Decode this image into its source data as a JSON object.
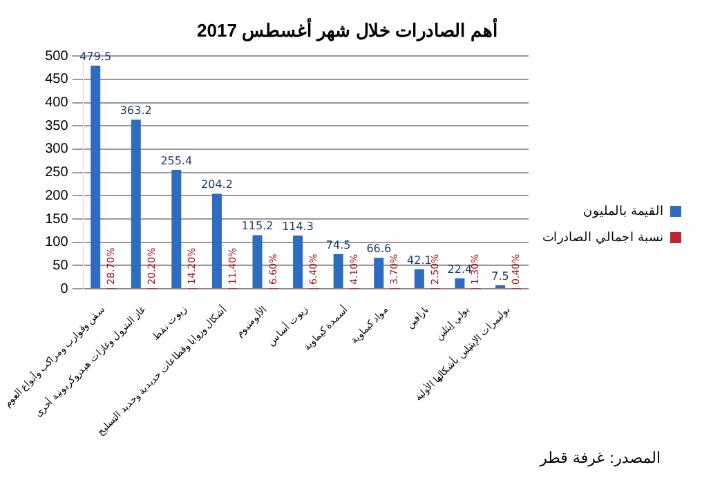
{
  "chart_data": {
    "type": "bar",
    "title": "أهم الصادرات خلال شهر أغسطس 2017",
    "categories": [
      "سفن وقوارب ومراكب وأنواع العوم",
      "غاز البترول وغازات هيدروكربونية أخرى",
      "زيوت نفط",
      "أشكال وزوايا وقطاعات حديدية وحديد التسليح",
      "الألومنيوم",
      "زيوت أساس",
      "أسمدة كيماوية",
      "مواد كيماوية",
      "بارافين",
      "بولي إيثلين",
      "بوليمرات الإيثيلين بأشكالها الأولية"
    ],
    "series": [
      {
        "name": "القيمة بالمليون",
        "color": "#2e6cc0",
        "values": [
          479.5,
          363.2,
          255.4,
          204.2,
          115.2,
          114.3,
          74.5,
          66.6,
          42.1,
          22.4,
          7.5
        ],
        "value_labels": [
          "479.5",
          "363.2",
          "255.4",
          "204.2",
          "115.2",
          "114.3",
          "74.5",
          "66.6",
          "42.1",
          "22.4",
          "7.5"
        ]
      },
      {
        "name": "نسبة اجمالي الصادرات",
        "color": "#c0262b",
        "values": [
          0.287,
          0.202,
          0.142,
          0.114,
          0.066,
          0.064,
          0.041,
          0.037,
          0.025,
          0.013,
          0.004
        ],
        "value_labels": [
          "28.70%",
          "20.20%",
          "14.20%",
          "11.40%",
          "6.60%",
          "6.40%",
          "4.10%",
          "3.70%",
          "2.50%",
          "1.30%",
          "0.40%"
        ]
      }
    ],
    "ylim": [
      0,
      500
    ],
    "yticks": [
      0,
      50,
      100,
      150,
      200,
      250,
      300,
      350,
      400,
      450,
      500
    ],
    "grid": "y",
    "legend": "right",
    "annotations": [
      "المصدر: غرفة قطر"
    ]
  }
}
